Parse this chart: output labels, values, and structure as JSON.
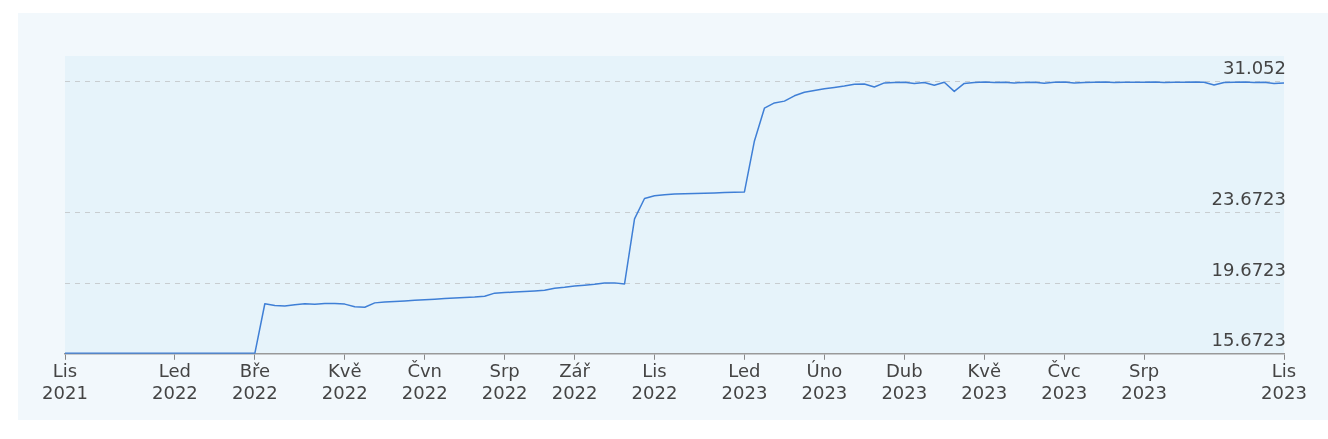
{
  "chart_data": {
    "type": "line",
    "categories": [
      "Lis 2021",
      null,
      null,
      null,
      null,
      null,
      null,
      null,
      null,
      null,
      null,
      "Led 2022",
      null,
      null,
      null,
      null,
      null,
      null,
      null,
      "Bře 2022",
      null,
      null,
      null,
      null,
      null,
      null,
      null,
      null,
      "Kvě 2022",
      null,
      null,
      null,
      null,
      null,
      null,
      null,
      "Čvn 2022",
      null,
      null,
      null,
      null,
      null,
      null,
      null,
      "Srp 2022",
      null,
      null,
      null,
      null,
      null,
      null,
      "Zář 2022",
      null,
      null,
      null,
      null,
      null,
      null,
      null,
      "Lis 2022",
      null,
      null,
      null,
      null,
      null,
      null,
      null,
      null,
      "Led 2023",
      null,
      null,
      null,
      null,
      null,
      null,
      null,
      "Úno 2023",
      null,
      null,
      null,
      null,
      null,
      null,
      null,
      "Dub 2023",
      null,
      null,
      null,
      null,
      null,
      null,
      null,
      "Kvě 2023",
      null,
      null,
      null,
      null,
      null,
      null,
      null,
      "Čvc 2023",
      null,
      null,
      null,
      null,
      null,
      null,
      null,
      "Srp 2023",
      null,
      null,
      null,
      null,
      null,
      null,
      null,
      null,
      null,
      null,
      null,
      null,
      null,
      "Lis 2023"
    ],
    "series": [
      {
        "color": "#3f7fd6",
        "values": [
          15.7,
          15.7,
          15.71,
          15.7,
          15.7,
          15.71,
          15.7,
          15.7,
          15.71,
          15.7,
          15.7,
          15.71,
          15.7,
          15.7,
          15.71,
          15.7,
          15.7,
          15.71,
          15.7,
          15.7,
          18.5,
          18.4,
          18.38,
          18.45,
          18.5,
          18.47,
          18.52,
          18.52,
          18.48,
          18.33,
          18.3,
          18.55,
          18.6,
          18.63,
          18.66,
          18.7,
          18.73,
          18.76,
          18.8,
          18.83,
          18.86,
          18.88,
          18.92,
          19.1,
          19.13,
          19.16,
          19.19,
          19.22,
          19.26,
          19.38,
          19.43,
          19.5,
          19.55,
          19.6,
          19.67,
          19.68,
          19.62,
          23.3,
          24.45,
          24.6,
          24.66,
          24.7,
          24.72,
          24.73,
          24.74,
          24.76,
          24.78,
          24.8,
          24.82,
          27.7,
          29.55,
          29.85,
          29.95,
          30.25,
          30.45,
          30.55,
          30.65,
          30.72,
          30.8,
          30.9,
          30.92,
          30.75,
          30.98,
          31.0,
          31.02,
          30.95,
          31.0,
          30.85,
          31.02,
          30.5,
          30.95,
          31.0,
          31.03,
          31.0,
          31.02,
          30.98,
          31.0,
          31.02,
          30.96,
          31.01,
          31.03,
          30.98,
          31.0,
          31.02,
          31.03,
          31.0,
          31.02,
          31.01,
          31.02,
          31.03,
          31.0,
          31.02,
          31.01,
          31.03,
          31.02,
          30.86,
          31.0,
          31.02,
          31.03,
          31.0,
          31.02,
          30.95,
          30.98
        ]
      }
    ],
    "ylim": [
      15.6723,
      32.5
    ],
    "yticks": [
      15.6723,
      19.6723,
      23.6723,
      31.052
    ],
    "grid": "y",
    "legend": false,
    "marker": "none",
    "line_style": "solid"
  }
}
